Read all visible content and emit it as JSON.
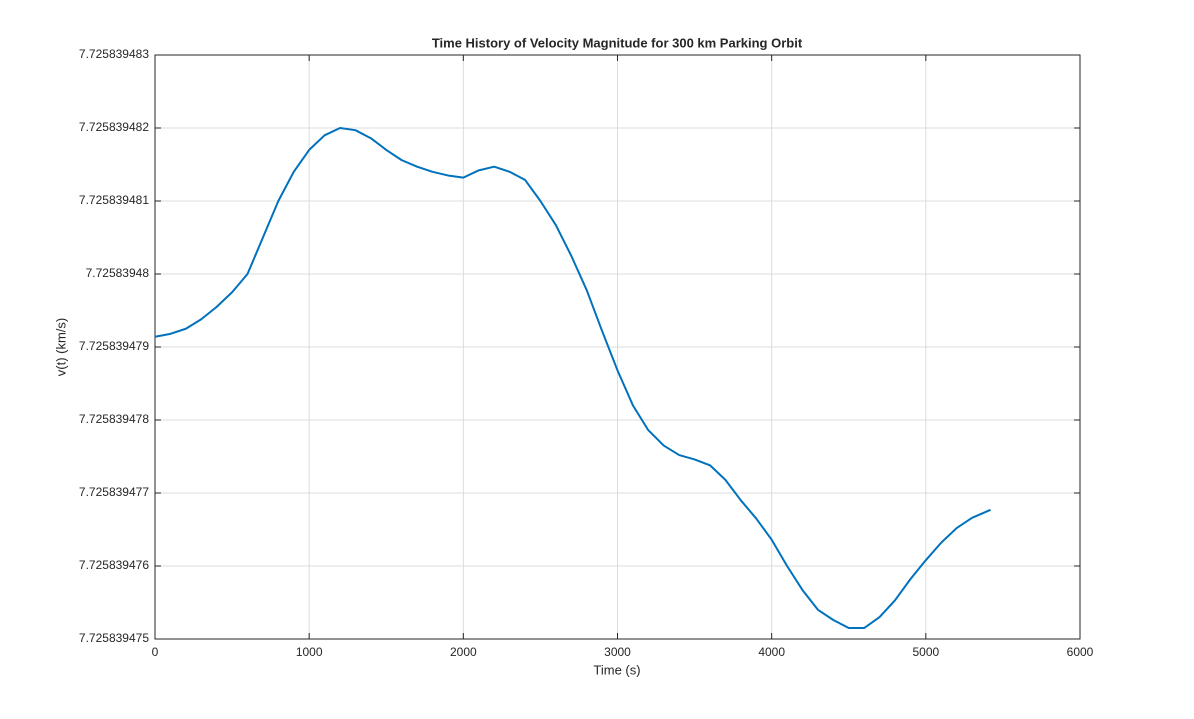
{
  "chart_data": {
    "type": "line",
    "title": "Time History of Velocity Magnitude for 300 km Parking Orbit",
    "x_label": "Time (s)",
    "y_label": "v(t) (km/s)",
    "x": [
      0,
      100,
      200,
      300,
      400,
      500,
      600,
      700,
      800,
      900,
      1000,
      1100,
      1200,
      1300,
      1400,
      1500,
      1600,
      1700,
      1800,
      1900,
      2000,
      2100,
      2200,
      2300,
      2400,
      2500,
      2600,
      2700,
      2800,
      2900,
      3000,
      3100,
      3200,
      3300,
      3400,
      3500,
      3600,
      3700,
      3800,
      3900,
      4000,
      4100,
      4200,
      4300,
      4400,
      4500,
      4600,
      4700,
      4800,
      4900,
      5000,
      5100,
      5200,
      5300,
      5420
    ],
    "series": [
      {
        "name": "v(t)",
        "color": "#0072bd",
        "values": [
          7.72583947914,
          7.72583947918,
          7.72583947925,
          7.72583947938,
          7.72583947955,
          7.72583947975,
          7.72583948,
          7.7258394805,
          7.725839481,
          7.7258394814,
          7.7258394817,
          7.7258394819,
          7.725839482,
          7.72583948197,
          7.72583948186,
          7.7258394817,
          7.72583948156,
          7.72583948147,
          7.7258394814,
          7.72583948135,
          7.72583948132,
          7.72583948142,
          7.72583948147,
          7.7258394814,
          7.72583948129,
          7.725839481,
          7.72583948067,
          7.72583948025,
          7.72583947978,
          7.72583947922,
          7.72583947868,
          7.7258394782,
          7.72583947786,
          7.72583947765,
          7.72583947752,
          7.72583947746,
          7.72583947738,
          7.72583947718,
          7.7258394769,
          7.72583947665,
          7.72583947636,
          7.725839476,
          7.72583947567,
          7.7258394754,
          7.72583947526,
          7.72583947515,
          7.72583947515,
          7.7258394753,
          7.72583947553,
          7.72583947582,
          7.72583947608,
          7.72583947632,
          7.72583947652,
          7.72583947666,
          7.72583947677
        ]
      }
    ],
    "xlim": [
      0,
      6000
    ],
    "xticks": [
      0,
      1000,
      2000,
      3000,
      4000,
      5000,
      6000
    ],
    "ylim": [
      7.725839475,
      7.725839483
    ],
    "yticks": [
      7.725839475,
      7.725839476,
      7.725839477,
      7.725839478,
      7.725839479,
      7.72583948,
      7.725839481,
      7.725839482,
      7.725839483
    ],
    "grid": true
  }
}
